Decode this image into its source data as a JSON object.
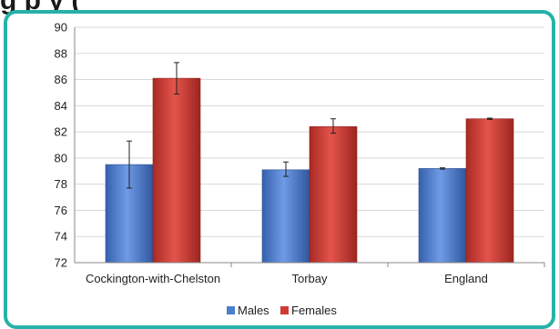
{
  "header": {
    "title_fragment": "g    p  y  ("
  },
  "chart_data": {
    "type": "bar",
    "categories": [
      "Cockington-with-Chelston",
      "Torbay",
      "England"
    ],
    "series": [
      {
        "name": "Males",
        "color": "#4a7fd0",
        "values": [
          79.5,
          79.1,
          79.2
        ],
        "error_low": [
          77.7,
          78.6,
          79.15
        ],
        "error_high": [
          81.3,
          79.7,
          79.25
        ]
      },
      {
        "name": "Females",
        "color": "#d03a32",
        "values": [
          86.1,
          82.4,
          83.0
        ],
        "error_low": [
          84.9,
          81.9,
          82.95
        ],
        "error_high": [
          87.3,
          83.0,
          83.05
        ]
      }
    ],
    "ylim": [
      72,
      90
    ],
    "yticks": [
      72,
      74,
      76,
      78,
      80,
      82,
      84,
      86,
      88,
      90
    ],
    "grid": true,
    "legend": "bottom",
    "title": "",
    "xlabel": "",
    "ylabel": ""
  }
}
